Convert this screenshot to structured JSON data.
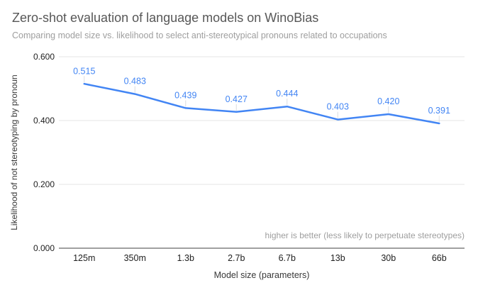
{
  "chart_data": {
    "type": "line",
    "title": "Zero-shot evaluation of language models on WinoBias",
    "subtitle": "Comparing model size vs. likelihood to select anti-stereotypical pronouns related to occupations",
    "categories": [
      "125m",
      "350m",
      "1.3b",
      "2.7b",
      "6.7b",
      "13b",
      "30b",
      "66b"
    ],
    "values": [
      0.515,
      0.483,
      0.439,
      0.427,
      0.444,
      0.403,
      0.42,
      0.391
    ],
    "series_name": "Likelihood of not stereotyping by pronoun",
    "xlabel": "Model size (parameters)",
    "ylabel": "Likelihood of not stereotyping by pronoun",
    "ylim": [
      0.0,
      0.6
    ],
    "yticks": [
      0.0,
      0.2,
      0.4,
      0.6
    ],
    "tick_decimals": 3,
    "grid": true,
    "legend_position": "none",
    "data_labels_shown": true,
    "annotation": "higher is better (less likely to perpetuate stereotypes)",
    "colors": {
      "line": "#4285f4",
      "data_label": "#4285f4",
      "gridline": "#e6e6e6",
      "axis_line": "#424242",
      "tick_label": "#212121",
      "leader_line": "#dadce0",
      "title": "#575757",
      "subtitle": "#9e9e9e",
      "annotation": "#9e9e9e"
    }
  }
}
